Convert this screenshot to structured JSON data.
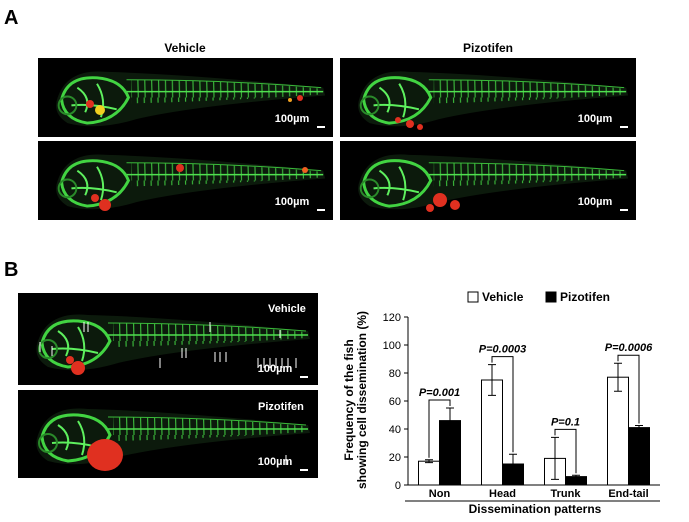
{
  "panel_a": {
    "label": "A",
    "columns": [
      "Vehicle",
      "Pizotifen"
    ],
    "scale_label": "100µm"
  },
  "panel_b": {
    "label": "B",
    "images": [
      "Vehicle",
      "Pizotifen"
    ],
    "scale_label": "100µm"
  },
  "chart_data": {
    "type": "bar",
    "ylabel": "Frequency of the fish showing cell dissemination (%)",
    "xlabel": "Dissemination patterns",
    "categories": [
      "Non",
      "Head",
      "Trunk",
      "End-tail"
    ],
    "series": [
      {
        "name": "Vehicle",
        "color": "#ffffff",
        "values": [
          17,
          75,
          19,
          77
        ],
        "errors": [
          1,
          11,
          15,
          10
        ]
      },
      {
        "name": "Pizotifen",
        "color": "#000000",
        "values": [
          46,
          15,
          6,
          41
        ],
        "errors": [
          9,
          7,
          1,
          1.5
        ]
      }
    ],
    "annotations": [
      "P=0.001",
      "P=0.0003",
      "P=0.1",
      "P=0.0006"
    ],
    "ylim": [
      0,
      120
    ],
    "yticks": [
      0,
      20,
      40,
      60,
      80,
      100,
      120
    ]
  }
}
